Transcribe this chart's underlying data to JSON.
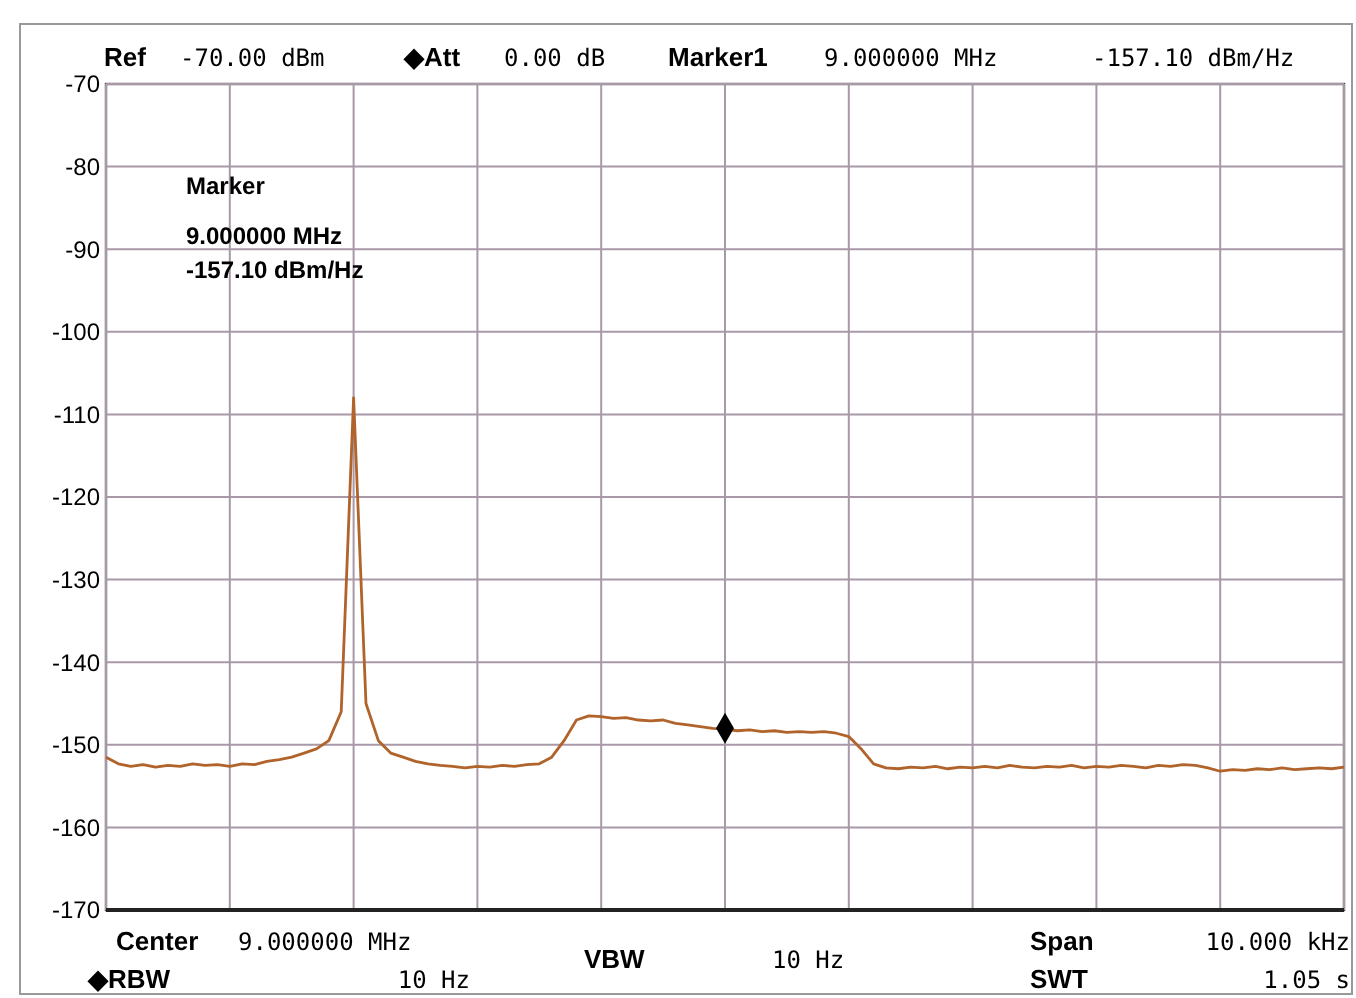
{
  "chart_data": {
    "type": "line",
    "series": [
      {
        "color": "#b0632a",
        "values": [
          -151.5,
          -152.3,
          -152.6,
          -152.4,
          -152.7,
          -152.5,
          -152.6,
          -152.3,
          -152.5,
          -152.4,
          -152.6,
          -152.3,
          -152.4,
          -152.0,
          -151.8,
          -151.5,
          -151.0,
          -150.5,
          -149.5,
          -146,
          -108,
          -145,
          -149.5,
          -151,
          -151.5,
          -152,
          -152.3,
          -152.5,
          -152.6,
          -152.8,
          -152.6,
          -152.7,
          -152.5,
          -152.6,
          -152.4,
          -152.3,
          -151.5,
          -149.5,
          -147,
          -146.5,
          -146.6,
          -146.8,
          -146.7,
          -147.0,
          -147.1,
          -147.0,
          -147.4,
          -147.6,
          -147.8,
          -148.0,
          -148.1,
          -148.3,
          -148.2,
          -148.4,
          -148.3,
          -148.5,
          -148.4,
          -148.5,
          -148.4,
          -148.6,
          -149.0,
          -150.5,
          -152.3,
          -152.8,
          -152.9,
          -152.7,
          -152.8,
          -152.6,
          -152.9,
          -152.7,
          -152.8,
          -152.6,
          -152.8,
          -152.5,
          -152.7,
          -152.8,
          -152.6,
          -152.7,
          -152.5,
          -152.8,
          -152.6,
          -152.7,
          -152.5,
          -152.6,
          -152.8,
          -152.5,
          -152.6,
          -152.4,
          -152.5,
          -152.8,
          -153.2,
          -153.0,
          -153.1,
          -152.9,
          -153.0,
          -152.8,
          -153.0,
          -152.9,
          -152.8,
          -152.9,
          -152.7
        ]
      },
      {
        "type": "scatter",
        "color": "#000000",
        "marker": "diamond",
        "values": [
          null,
          null,
          null,
          null,
          null,
          null,
          null,
          null,
          null,
          null,
          null,
          null,
          null,
          null,
          null,
          null,
          null,
          null,
          null,
          null,
          null,
          null,
          null,
          null,
          null,
          null,
          null,
          null,
          null,
          null,
          null,
          null,
          null,
          null,
          null,
          null,
          null,
          null,
          null,
          null,
          null,
          null,
          null,
          null,
          null,
          null,
          null,
          null,
          null,
          null,
          -148,
          null,
          null,
          null,
          null,
          null,
          null,
          null,
          null,
          null,
          null,
          null,
          null,
          null,
          null,
          null,
          null,
          null,
          null,
          null,
          null,
          null,
          null,
          null,
          null,
          null,
          null,
          null,
          null,
          null,
          null,
          null,
          null,
          null,
          null,
          null,
          null,
          null,
          null,
          null,
          null,
          null,
          null,
          null,
          null,
          null,
          null,
          null,
          null,
          null,
          null
        ]
      }
    ],
    "ylim": [
      -170,
      -70
    ],
    "yticks": [
      -70,
      -80,
      -90,
      -100,
      -110,
      -120,
      -130,
      -140,
      -150,
      -160,
      -170
    ],
    "grid": true,
    "categories": [
      null,
      null,
      null,
      null,
      null,
      null,
      null,
      null,
      null,
      null,
      null,
      null,
      null,
      null,
      null,
      null,
      null,
      null,
      null,
      null,
      null,
      null,
      null,
      null,
      null,
      null,
      null,
      null,
      null,
      null,
      null,
      null,
      null,
      null,
      null,
      null,
      null,
      null,
      null,
      null,
      null,
      null,
      null,
      null,
      null,
      null,
      null,
      null,
      null,
      null,
      null,
      null,
      null,
      null,
      null,
      null,
      null,
      null,
      null,
      null,
      null,
      null,
      null,
      null,
      null,
      null,
      null,
      null,
      null,
      null,
      null,
      null,
      null,
      null,
      null,
      null,
      null,
      null,
      null,
      null,
      null,
      null,
      null,
      null,
      null,
      null,
      null,
      null,
      null,
      null,
      null,
      null,
      null,
      null,
      null,
      null,
      null,
      null,
      null,
      null,
      null
    ],
    "annotations": [
      "Ref",
      "-70.00 dBm",
      "◆Att",
      "0.00 dB",
      "Marker1",
      "9.000000 MHz",
      "-157.10 dBm/Hz",
      "Marker",
      "9.000000 MHz",
      "-157.10 dBm/Hz",
      "Center",
      "9.000000 MHz",
      "VBW",
      "10 Hz",
      "Span",
      "10.000 kHz",
      "◆RBW",
      "10 Hz",
      "SWT",
      "1.05 s"
    ]
  }
}
